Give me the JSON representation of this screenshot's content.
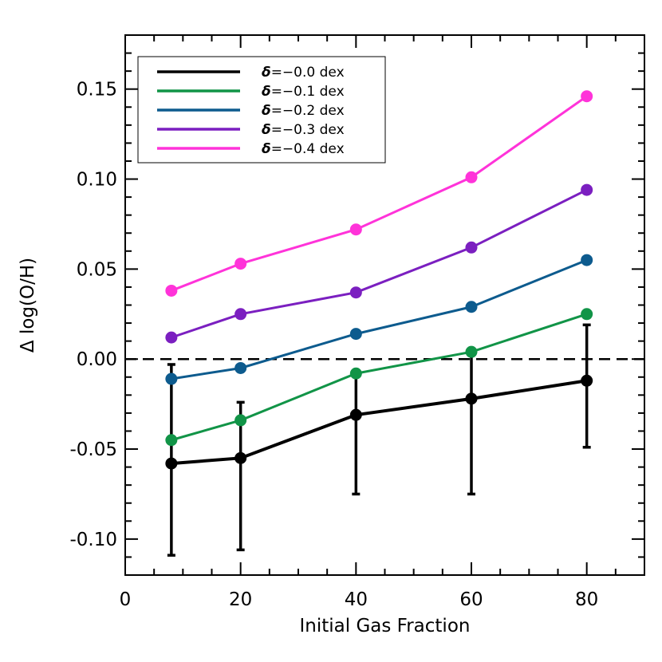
{
  "chart_data": {
    "type": "line",
    "xlabel": "Initial Gas Fraction",
    "ylabel": "Δ log(O/H)",
    "xlim": [
      0,
      90
    ],
    "ylim": [
      -0.12,
      0.18
    ],
    "x_ticks": [
      "0",
      "20",
      "40",
      "60",
      "80"
    ],
    "y_ticks": [
      "-0.10",
      "-0.05",
      "0.00",
      "0.05",
      "0.10",
      "0.15"
    ],
    "x_tick_values": [
      0,
      20,
      40,
      60,
      80
    ],
    "y_tick_values": [
      -0.1,
      -0.05,
      0.0,
      0.05,
      0.1,
      0.15
    ],
    "x_minor_step": 5,
    "y_minor_step": 0.01,
    "reference_line": {
      "y": 0.0,
      "style": "dashed",
      "color": "#000000"
    },
    "legend_position": "top-left",
    "legend": {
      "prefix": "δ",
      "items": [
        "=−0.0 dex",
        "=−0.1 dex",
        "=−0.2 dex",
        "=−0.3 dex",
        "=−0.4 dex"
      ]
    },
    "x": [
      8,
      20,
      40,
      60,
      80
    ],
    "series": [
      {
        "name": "δ=−0.0 dex",
        "color": "#000000",
        "values": [
          -0.058,
          -0.055,
          -0.031,
          -0.022,
          -0.012
        ],
        "error_low": [
          -0.109,
          -0.106,
          -0.075,
          -0.075,
          -0.049
        ],
        "error_high": [
          -0.003,
          -0.024,
          -0.007,
          0.005,
          0.019
        ]
      },
      {
        "name": "δ=−0.1 dex",
        "color": "#119447",
        "values": [
          -0.045,
          -0.034,
          -0.008,
          0.004,
          0.025
        ]
      },
      {
        "name": "δ=−0.2 dex",
        "color": "#0d5b8e",
        "values": [
          -0.011,
          -0.005,
          0.014,
          0.029,
          0.055
        ]
      },
      {
        "name": "δ=−0.3 dex",
        "color": "#7b1fc0",
        "values": [
          0.012,
          0.025,
          0.037,
          0.062,
          0.094
        ]
      },
      {
        "name": "δ=−0.4 dex",
        "color": "#ff33d9",
        "values": [
          0.038,
          0.053,
          0.072,
          0.101,
          0.146
        ]
      }
    ]
  }
}
